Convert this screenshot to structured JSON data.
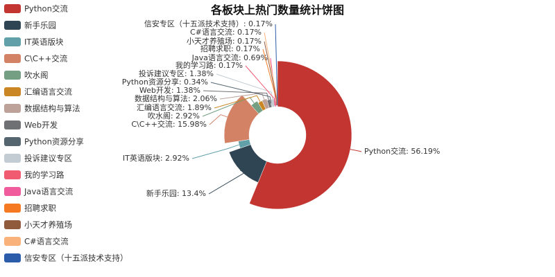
{
  "chart_data": {
    "type": "pie",
    "title": "各板块上热门数量统计饼图",
    "donut": true,
    "legend_position": "left",
    "slices": [
      {
        "name": "Python交流",
        "value": 56.19,
        "label": "Python交流: 56.19%",
        "color": "#c23531"
      },
      {
        "name": "新手乐园",
        "value": 13.4,
        "label": "新手乐园: 13.4%",
        "color": "#2f4554"
      },
      {
        "name": "IT英语版块",
        "value": 2.92,
        "label": "IT英语版块: 2.92%",
        "color": "#61a0a8"
      },
      {
        "name": "C\\C++交流",
        "value": 15.98,
        "label": "C\\C++交流: 15.98%",
        "color": "#d48265"
      },
      {
        "name": "吹水阁",
        "value": 2.92,
        "label": "吹水阁: 2.92%",
        "color": "#749f83"
      },
      {
        "name": "汇编语言交流",
        "value": 1.89,
        "label": "汇编语言交流: 1.89%",
        "color": "#ca8622"
      },
      {
        "name": "数据结构与算法",
        "value": 2.06,
        "label": "数据结构与算法: 2.06%",
        "color": "#bda29a"
      },
      {
        "name": "Web开发",
        "value": 1.38,
        "label": "Web开发: 1.38%",
        "color": "#6e7074"
      },
      {
        "name": "Python资源分享",
        "value": 0.34,
        "label": "Python资源分享: 0.34%",
        "color": "#546570"
      },
      {
        "name": "投诉建议专区",
        "value": 1.38,
        "label": "投诉建议专区: 1.38%",
        "color": "#c4ccd3"
      },
      {
        "name": "我的学习路",
        "value": 0.17,
        "label": "我的学习路: 0.17%",
        "color": "#f05b72"
      },
      {
        "name": "Java语言交流",
        "value": 0.69,
        "label": "Java语言交流: 0.69%",
        "color": "#ef5b9c"
      },
      {
        "name": "招聘求职",
        "value": 0.17,
        "label": "招聘求职: 0.17%",
        "color": "#f47920"
      },
      {
        "name": "小天才养殖场",
        "value": 0.17,
        "label": "小天才养殖场: 0.17%",
        "color": "#905a3d"
      },
      {
        "name": "C#语言交流",
        "value": 0.17,
        "label": "C#语言交流: 0.17%",
        "color": "#fab27b"
      },
      {
        "name": "信安专区（十五派技术支持）",
        "value": 0.17,
        "label": "信安专区（十五派技术支持）: 0.17%",
        "color": "#2a5caa"
      }
    ]
  }
}
